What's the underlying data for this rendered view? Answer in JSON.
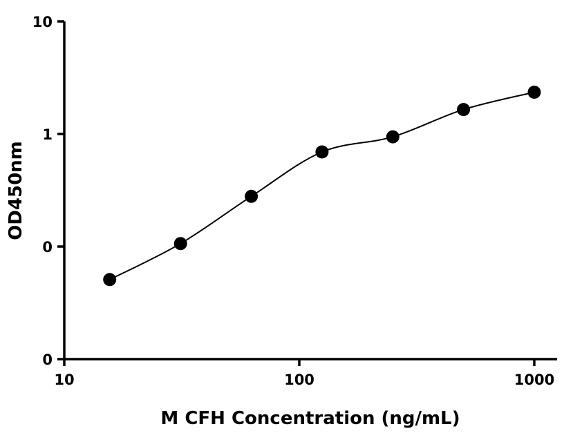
{
  "chart_data": {
    "type": "scatter",
    "title": "",
    "xlabel": "M CFH Concentration (ng/mL)",
    "ylabel": "OD450nm",
    "x_scale": "log",
    "xlim": [
      10,
      1200
    ],
    "x_ticks": [
      {
        "value": 10,
        "label": "10"
      },
      {
        "value": 100,
        "label": "100"
      },
      {
        "value": 1000,
        "label": "1000"
      }
    ],
    "y_ticks": [
      {
        "level": 0,
        "label": "0"
      },
      {
        "level": 1,
        "label": "0"
      },
      {
        "level": 2,
        "label": "1"
      },
      {
        "level": 3,
        "label": "10"
      }
    ],
    "grid": false,
    "legend": "none",
    "points": [
      {
        "x": 15.6,
        "y": 0.07
      },
      {
        "x": 31.25,
        "y": 0.135
      },
      {
        "x": 62.5,
        "y": 0.32
      },
      {
        "x": 125,
        "y": 0.72
      },
      {
        "x": 250,
        "y": 0.95
      },
      {
        "x": 500,
        "y": 1.65
      },
      {
        "x": 1000,
        "y": 2.35
      }
    ],
    "fit": "curve",
    "colors": {
      "points": "#000000",
      "axes": "#000000",
      "background": "#ffffff"
    }
  }
}
